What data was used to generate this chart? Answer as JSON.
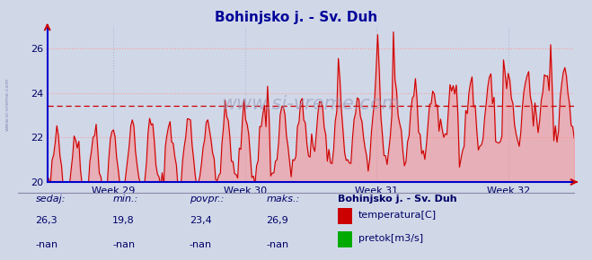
{
  "title": "Bohinjsko j. - Sv. Duh",
  "title_color": "#000099",
  "bg_color": "#d0d8e8",
  "grid_color_h": "#ff9999",
  "grid_color_v": "#b0b8d0",
  "line_color": "#cc0000",
  "fill_color": "#ff8888",
  "avg_line_color": "#cc0000",
  "avg_value": 23.4,
  "y_min": 20,
  "y_max": 27,
  "y_ticks": [
    20,
    22,
    24,
    26
  ],
  "x_tick_labels": [
    "Week 29",
    "Week 30",
    "Week 31",
    "Week 32"
  ],
  "watermark": "www.si-vreme.com",
  "footer_labels": [
    "sedaj:",
    "min.:",
    "povpr.:",
    "maks.:"
  ],
  "footer_values_temp": [
    "26,3",
    "19,8",
    "23,4",
    "26,9"
  ],
  "footer_values_flow": [
    "-nan",
    "-nan",
    "-nan",
    "-nan"
  ],
  "legend_title": "Bohinjsko j. - Sv. Duh",
  "legend_items": [
    "temperatura[C]",
    "pretok[m3/s]"
  ],
  "legend_colors": [
    "#cc0000",
    "#00aa00"
  ],
  "sidebar_text": "www.si-vreme.com",
  "n_points": 336
}
